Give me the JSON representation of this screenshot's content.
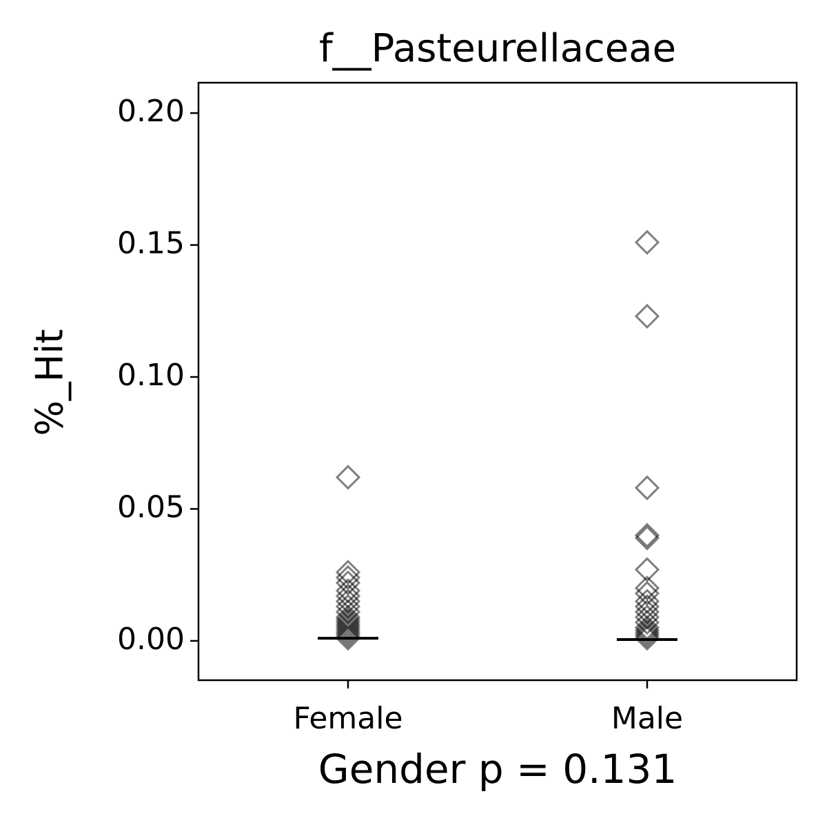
{
  "chart_data": {
    "type": "strip",
    "title": "f__Pasteurellaceae",
    "x_label": "Gender p = 0.131",
    "y_label": "%_Hit",
    "categories": [
      "Female",
      "Male"
    ],
    "values": [
      [
        0.062,
        0.026,
        0.024,
        0.022,
        0.019,
        0.017,
        0.015,
        0.013,
        0.011,
        0.009,
        0.008,
        0.007,
        0.006,
        0.005,
        0.004,
        0.003,
        0.002,
        0.001
      ],
      [
        0.151,
        0.123,
        0.058,
        0.04,
        0.039,
        0.027,
        0.02,
        0.018,
        0.015,
        0.013,
        0.011,
        0.009,
        0.007,
        0.005,
        0.004,
        0.003,
        0.002,
        0.001
      ]
    ],
    "medians": [
      0.001,
      0.0005
    ],
    "color": "#000000",
    "ylim": [
      -0.0149,
      0.2115
    ],
    "yticks": [
      {
        "value": 0,
        "label": "0.00"
      },
      {
        "value": 0.05,
        "label": "0.05"
      },
      {
        "value": 0.1,
        "label": "0.10"
      },
      {
        "value": 0.15,
        "label": "0.15"
      },
      {
        "value": 0.2,
        "label": "0.20"
      }
    ]
  }
}
